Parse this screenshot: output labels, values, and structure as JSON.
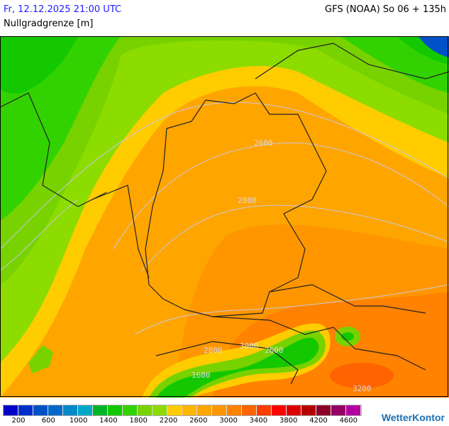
{
  "header": {
    "datetime": "Fr, 12.12.2025 21:00 UTC",
    "model_run": "GFS (NOAA) So 06 + 135h",
    "parameter": "Nullgradgrenze [m]"
  },
  "map": {
    "contour_labels": [
      "2600",
      "2800",
      "2800",
      "3000",
      "2600",
      "1600",
      "3200"
    ]
  },
  "legend": {
    "colors": [
      "#0000c8",
      "#0030c8",
      "#0050c8",
      "#0068c8",
      "#0088c8",
      "#00a8c8",
      "#00b428",
      "#14c800",
      "#32d200",
      "#78d200",
      "#8cdc00",
      "#ffcc00",
      "#ffb400",
      "#ffa500",
      "#ff9600",
      "#ff8200",
      "#ff6400",
      "#ff3c00",
      "#ff0000",
      "#dc0000",
      "#b40000",
      "#8c0028",
      "#960064",
      "#b400a0"
    ],
    "labels": [
      "200",
      "600",
      "1000",
      "1400",
      "1800",
      "2200",
      "2600",
      "3000",
      "3400",
      "3800",
      "4200",
      "4600"
    ]
  },
  "brand": {
    "logo": "WetterKontor"
  }
}
